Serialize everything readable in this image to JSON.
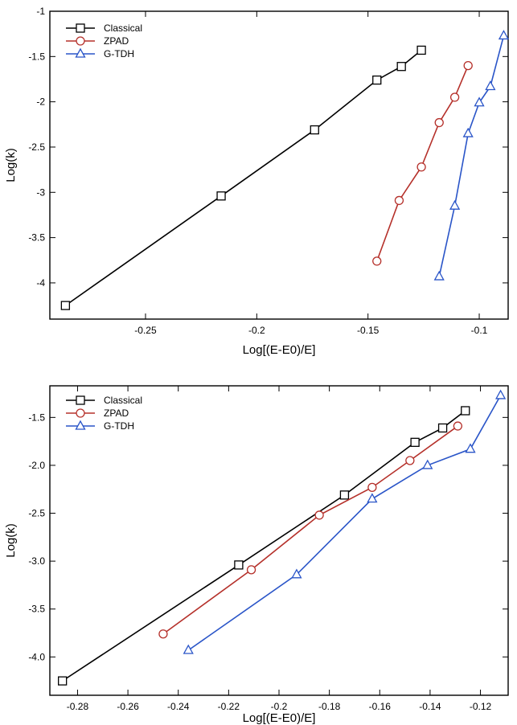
{
  "chart_data": [
    {
      "type": "line",
      "title": "",
      "xlabel": "Log[(E-E0)/E]",
      "ylabel": "Log(k)",
      "xlim": [
        -0.293,
        -0.087
      ],
      "ylim": [
        -4.4,
        -1.0
      ],
      "xticks": [
        -0.25,
        -0.2,
        -0.15,
        -0.1
      ],
      "xtick_labels": [
        "-0.25",
        "-0.2",
        "-0.15",
        "-0.1"
      ],
      "yticks": [
        -1.0,
        -1.5,
        -2.0,
        -2.5,
        -3.0,
        -3.5,
        -4.0
      ],
      "ytick_labels": [
        "-1",
        "-1.5",
        "-2",
        "-2.5",
        "-3",
        "-3.5",
        "-4"
      ],
      "grid": false,
      "legend_position": "top-left",
      "series": [
        {
          "name": "Classical",
          "color": "#000000",
          "marker": "square",
          "x": [
            -0.286,
            -0.216,
            -0.174,
            -0.146,
            -0.135,
            -0.126
          ],
          "y": [
            -4.25,
            -3.04,
            -2.31,
            -1.76,
            -1.61,
            -1.43
          ]
        },
        {
          "name": "ZPAD",
          "color": "#b5302a",
          "marker": "circle",
          "x": [
            -0.146,
            -0.136,
            -0.126,
            -0.118,
            -0.111,
            -0.105
          ],
          "y": [
            -3.76,
            -3.09,
            -2.72,
            -2.23,
            -1.95,
            -1.6
          ]
        },
        {
          "name": "G-TDH",
          "color": "#2a55c8",
          "marker": "triangle",
          "x": [
            -0.118,
            -0.111,
            -0.105,
            -0.1,
            -0.095,
            -0.089
          ],
          "y": [
            -3.93,
            -3.15,
            -2.35,
            -2.01,
            -1.83,
            -1.27
          ]
        }
      ]
    },
    {
      "type": "line",
      "title": "",
      "xlabel": "Log[(E-E0)/E]",
      "ylabel": "Log(k)",
      "xlim": [
        -0.291,
        -0.109
      ],
      "ylim": [
        -4.4,
        -1.17
      ],
      "xticks": [
        -0.28,
        -0.26,
        -0.24,
        -0.22,
        -0.2,
        -0.18,
        -0.16,
        -0.14,
        -0.12
      ],
      "xtick_labels": [
        "-0.28",
        "-0.26",
        "-0.24",
        "-0.22",
        "-0.2",
        "-0.18",
        "-0.16",
        "-0.14",
        "-0.12"
      ],
      "yticks": [
        -1.5,
        -2.0,
        -2.5,
        -3.0,
        -3.5,
        -4.0
      ],
      "ytick_labels": [
        "-1.5",
        "-2.0",
        "-2.5",
        "-3.0",
        "-3.5",
        "-4.0"
      ],
      "grid": false,
      "legend_position": "top-left",
      "series": [
        {
          "name": "Classical",
          "color": "#000000",
          "marker": "square",
          "x": [
            -0.286,
            -0.216,
            -0.174,
            -0.146,
            -0.135,
            -0.126
          ],
          "y": [
            -4.25,
            -3.04,
            -2.31,
            -1.76,
            -1.61,
            -1.43
          ]
        },
        {
          "name": "ZPAD",
          "color": "#b5302a",
          "marker": "circle",
          "x": [
            -0.246,
            -0.211,
            -0.184,
            -0.163,
            -0.148,
            -0.129
          ],
          "y": [
            -3.76,
            -3.09,
            -2.52,
            -2.23,
            -1.95,
            -1.59
          ]
        },
        {
          "name": "G-TDH",
          "color": "#2a55c8",
          "marker": "triangle",
          "x": [
            -0.236,
            -0.193,
            -0.163,
            -0.141,
            -0.124,
            -0.112
          ],
          "y": [
            -3.93,
            -3.14,
            -2.35,
            -2.0,
            -1.83,
            -1.27
          ]
        }
      ]
    }
  ]
}
